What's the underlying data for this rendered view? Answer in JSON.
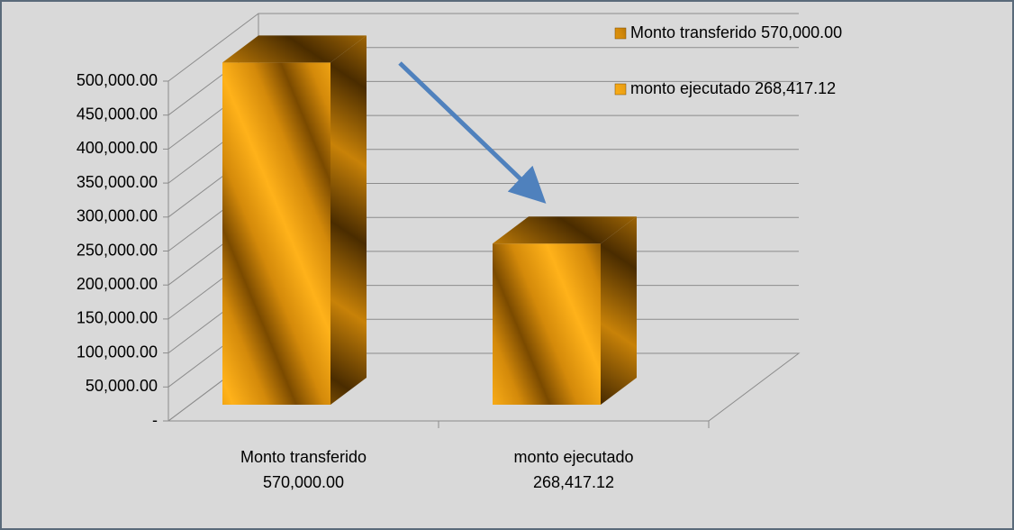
{
  "chart_data": {
    "type": "bar3d",
    "categories": [
      "Monto transferido 570,000.00",
      "monto ejecutado 268,417.12"
    ],
    "values": [
      570000,
      268417.12
    ],
    "ylim": [
      0,
      500000
    ],
    "yticks": [
      {
        "value": 0,
        "label": "-"
      },
      {
        "value": 50000,
        "label": "50,000.00"
      },
      {
        "value": 100000,
        "label": "100,000.00"
      },
      {
        "value": 150000,
        "label": "150,000.00"
      },
      {
        "value": 200000,
        "label": "200,000.00"
      },
      {
        "value": 250000,
        "label": "250,000.00"
      },
      {
        "value": 300000,
        "label": "300,000.00"
      },
      {
        "value": 350000,
        "label": "350,000.00"
      },
      {
        "value": 400000,
        "label": "400,000.00"
      },
      {
        "value": 450000,
        "label": "450,000.00"
      },
      {
        "value": 500000,
        "label": "500,000.00"
      }
    ],
    "grid": true,
    "legend": "top-right",
    "color": "#e89a10"
  }
}
